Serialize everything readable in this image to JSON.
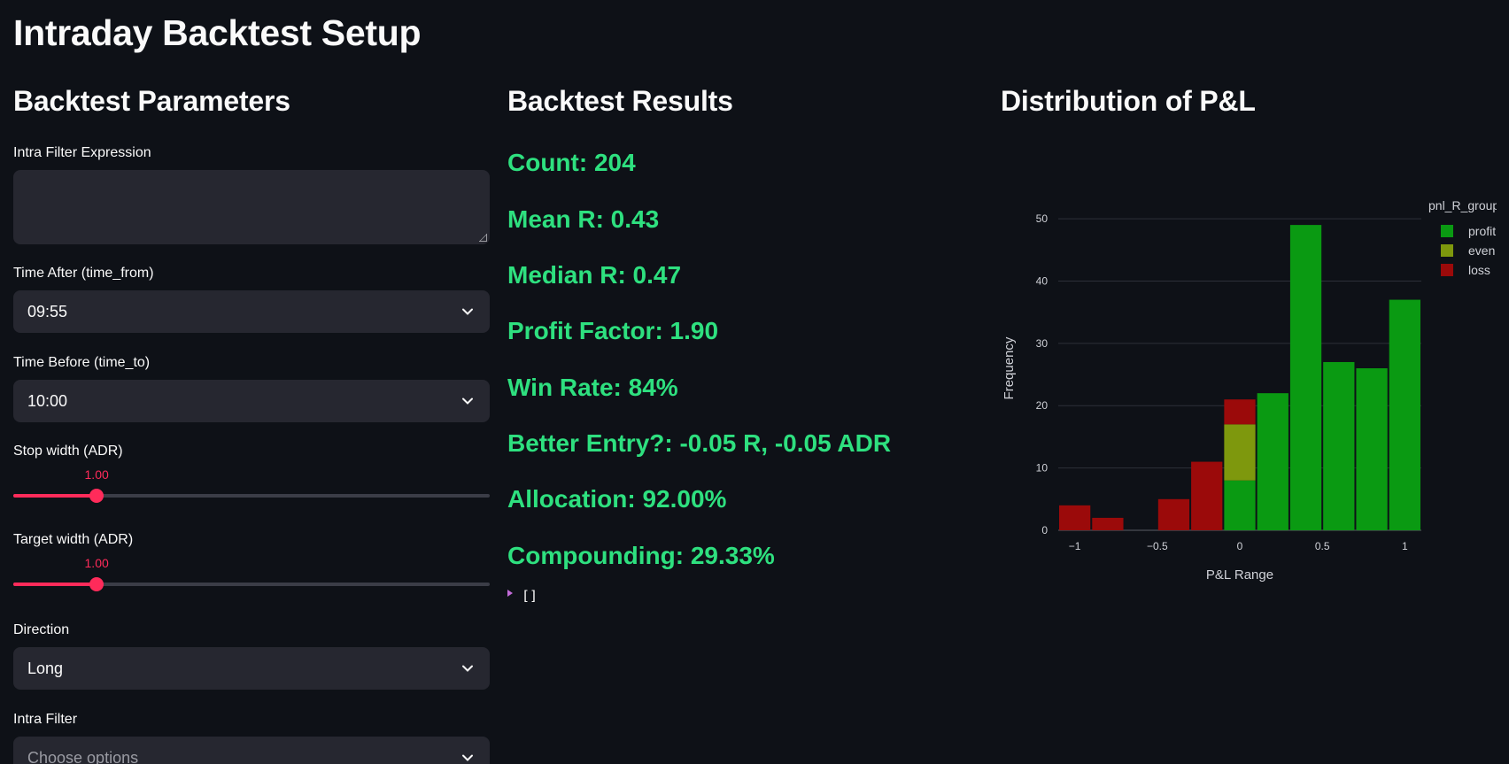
{
  "page_title": "Intraday Backtest Setup",
  "params": {
    "heading": "Backtest Parameters",
    "filter_expression": {
      "label": "Intra Filter Expression",
      "value": ""
    },
    "time_after": {
      "label": "Time After (time_from)",
      "value": "09:55"
    },
    "time_before": {
      "label": "Time Before (time_to)",
      "value": "10:00"
    },
    "stop_width": {
      "label": "Stop width (ADR)",
      "value": "1.00",
      "fraction": 0.175
    },
    "target_width": {
      "label": "Target width (ADR)",
      "value": "1.00",
      "fraction": 0.175
    },
    "direction": {
      "label": "Direction",
      "value": "Long"
    },
    "intra_filter": {
      "label": "Intra Filter",
      "placeholder": "Choose options"
    }
  },
  "results": {
    "heading": "Backtest Results",
    "metrics": [
      "Count: 204",
      "Mean R: 0.43",
      "Median R: 0.47",
      "Profit Factor: 1.90",
      "Win Rate: 84%",
      "Better Entry?: -0.05 R, -0.05 ADR",
      "Allocation: 92.00%",
      "Compounding: 29.33%"
    ],
    "json_preview": "[]",
    "metric_color": "#2ee07f"
  },
  "distribution": {
    "heading": "Distribution of P&L"
  },
  "chart_data": {
    "type": "bar",
    "stacked": true,
    "xlabel": "P&L Range",
    "ylabel": "Frequency",
    "legend_title": "pnl_R_group",
    "legend_position": "top-right",
    "grid": true,
    "xlim": [
      -1.1,
      1.1
    ],
    "ylim": [
      0,
      52
    ],
    "x_ticks": [
      "−1",
      "−0.5",
      "0",
      "0.5",
      "1"
    ],
    "x_tick_values": [
      -1,
      -0.5,
      0,
      0.5,
      1
    ],
    "y_ticks": [
      0,
      10,
      20,
      30,
      40,
      50
    ],
    "bin_width": 0.2,
    "bin_centers": [
      -1.0,
      -0.8,
      -0.6,
      -0.4,
      -0.2,
      0.0,
      0.2,
      0.4,
      0.6,
      0.8,
      1.0
    ],
    "series": [
      {
        "name": "profit",
        "color": "#0a9a12",
        "values": [
          0,
          0,
          0,
          0,
          0,
          8,
          22,
          49,
          27,
          26,
          37
        ]
      },
      {
        "name": "even",
        "color": "#7e980d",
        "values": [
          0,
          0,
          0,
          0,
          0,
          9,
          0,
          0,
          0,
          0,
          0
        ]
      },
      {
        "name": "loss",
        "color": "#9b0a0a",
        "values": [
          4,
          2,
          0,
          5,
          11,
          4,
          0,
          0,
          0,
          0,
          0
        ]
      }
    ]
  }
}
